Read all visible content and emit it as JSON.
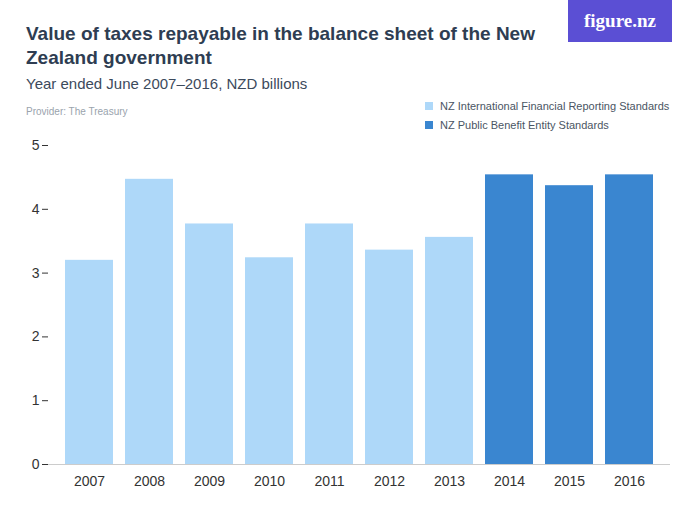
{
  "chart_data": {
    "type": "bar",
    "title": "Value of taxes repayable in the balance sheet of the New Zealand government",
    "subtitle": "Year ended June 2007–2016, NZD billions",
    "caption": "Provider: The Treasury",
    "logo": "figure.nz",
    "categories": [
      "2007",
      "2008",
      "2009",
      "2010",
      "2011",
      "2012",
      "2013",
      "2014",
      "2015",
      "2016"
    ],
    "series": [
      {
        "name": "NZ International Financial Reporting Standards",
        "color": "#aed8f9",
        "values": [
          3.2,
          4.47,
          3.77,
          3.24,
          3.77,
          3.36,
          3.56,
          null,
          null,
          null
        ]
      },
      {
        "name": "NZ Public Benefit Entity Standards",
        "color": "#3a86d0",
        "values": [
          null,
          null,
          null,
          null,
          null,
          null,
          null,
          4.54,
          4.37,
          4.54
        ]
      }
    ],
    "ylim": [
      0,
      5
    ],
    "yticks": [
      0,
      1,
      2,
      3,
      4,
      5
    ],
    "grid": false,
    "legend": "top-right"
  }
}
